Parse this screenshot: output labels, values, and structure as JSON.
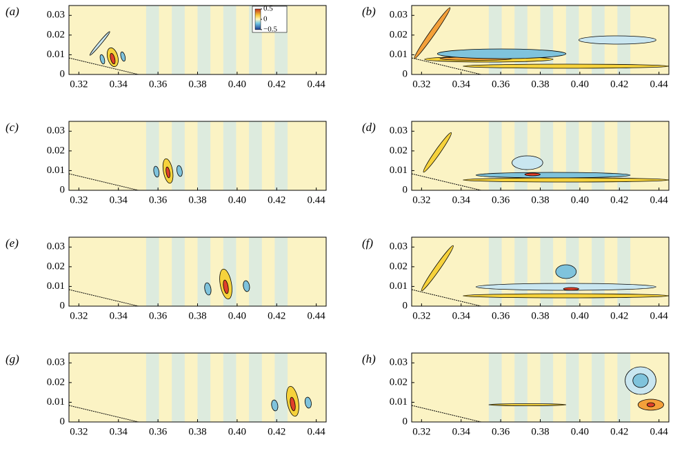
{
  "chart_data": [
    {
      "type": "contour",
      "label": "(a)",
      "xlim": [
        0.315,
        0.445
      ],
      "ylim": [
        0,
        0.035
      ],
      "xticks": [
        0.32,
        0.34,
        0.36,
        0.38,
        {
          "value": 0.4,
          "label": "0.40"
        },
        0.42,
        0.44
      ],
      "yticks": [
        0,
        0.01,
        0.02,
        0.03
      ],
      "colorbar": {
        "lim": [
          -0.5,
          0.5
        ],
        "ticks": [
          0.5,
          0,
          {
            "value": -0.5,
            "label": "−0.5"
          }
        ]
      }
    },
    {
      "type": "contour",
      "label": "(b)",
      "xlim": [
        0.315,
        0.445
      ],
      "ylim": [
        0,
        0.035
      ],
      "xticks": [
        0.32,
        0.34,
        0.36,
        0.38,
        {
          "value": 0.4,
          "label": "0.40"
        },
        0.42,
        0.44
      ],
      "yticks": [
        0,
        0.01,
        0.02,
        0.03
      ]
    },
    {
      "type": "contour",
      "label": "(c)",
      "xlim": [
        0.315,
        0.445
      ],
      "ylim": [
        0,
        0.035
      ],
      "xticks": [
        0.32,
        0.34,
        0.36,
        0.38,
        {
          "value": 0.4,
          "label": "0.40"
        },
        0.42,
        0.44
      ],
      "yticks": [
        0,
        0.01,
        0.02,
        0.03
      ]
    },
    {
      "type": "contour",
      "label": "(d)",
      "xlim": [
        0.315,
        0.445
      ],
      "ylim": [
        0,
        0.035
      ],
      "xticks": [
        0.32,
        0.34,
        0.36,
        0.38,
        {
          "value": 0.4,
          "label": "0.40"
        },
        0.42,
        0.44
      ],
      "yticks": [
        0,
        0.01,
        0.02,
        0.03
      ]
    },
    {
      "type": "contour",
      "label": "(e)",
      "xlim": [
        0.315,
        0.445
      ],
      "ylim": [
        0,
        0.035
      ],
      "xticks": [
        0.32,
        0.34,
        0.36,
        0.38,
        {
          "value": 0.4,
          "label": "0.40"
        },
        0.42,
        0.44
      ],
      "yticks": [
        0,
        0.01,
        0.02,
        0.03
      ]
    },
    {
      "type": "contour",
      "label": "(f)",
      "xlim": [
        0.315,
        0.445
      ],
      "ylim": [
        0,
        0.035
      ],
      "xticks": [
        0.32,
        0.34,
        0.36,
        0.38,
        {
          "value": 0.4,
          "label": "0.40"
        },
        0.42,
        0.44
      ],
      "yticks": [
        0,
        0.01,
        0.02,
        0.03
      ]
    },
    {
      "type": "contour",
      "label": "(g)",
      "xlim": [
        0.315,
        0.445
      ],
      "ylim": [
        0,
        0.035
      ],
      "xticks": [
        0.32,
        0.34,
        0.36,
        0.38,
        {
          "value": 0.4,
          "label": "0.40"
        },
        0.42,
        0.44
      ],
      "yticks": [
        0,
        0.01,
        0.02,
        0.03
      ]
    },
    {
      "type": "contour",
      "label": "(h)",
      "xlim": [
        0.315,
        0.445
      ],
      "ylim": [
        0,
        0.035
      ],
      "xticks": [
        0.32,
        0.34,
        0.36,
        0.38,
        {
          "value": 0.4,
          "label": "0.40"
        },
        0.42,
        0.44
      ],
      "yticks": [
        0,
        0.01,
        0.02,
        0.03
      ]
    }
  ]
}
